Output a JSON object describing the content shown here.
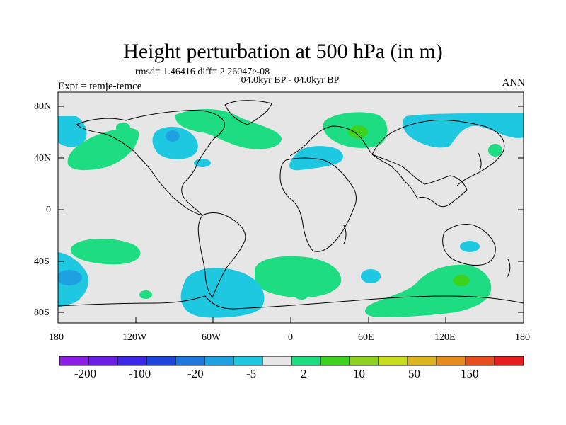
{
  "header": {
    "title": "Height perturbation at 500 hPa (in m)",
    "stats": "rmsd= 1.46416 diff= 2.26047e-08",
    "period": "04.0kyr BP - 04.0kyr BP",
    "experiment": "Expt = temje-temce",
    "season": "ANN"
  },
  "axes": {
    "lat_labels": [
      "80N",
      "40N",
      "0",
      "40S",
      "80S"
    ],
    "lon_labels": [
      "180",
      "120W",
      "60W",
      "0",
      "60E",
      "120E",
      "180"
    ]
  },
  "colorbar": {
    "labels": [
      "-200",
      "-100",
      "-20",
      "-5",
      "2",
      "10",
      "50",
      "150"
    ],
    "colors": [
      "#8c1ee6",
      "#6a1ee6",
      "#3c28e6",
      "#1e46dc",
      "#1e78dc",
      "#1ea0e1",
      "#1ec8e1",
      "#e6e6e6",
      "#1edc82",
      "#3cd21e",
      "#8cd21e",
      "#c8dc1e",
      "#dcb41e",
      "#e68c1e",
      "#e6501e",
      "#e61e1e"
    ]
  },
  "map": {
    "background": "#e6e6e6",
    "fill_positive": "#1edc82",
    "fill_positive_strong": "#3cd21e",
    "fill_negative": "#1ec8e1",
    "fill_negative_strong": "#1ea0e1"
  }
}
